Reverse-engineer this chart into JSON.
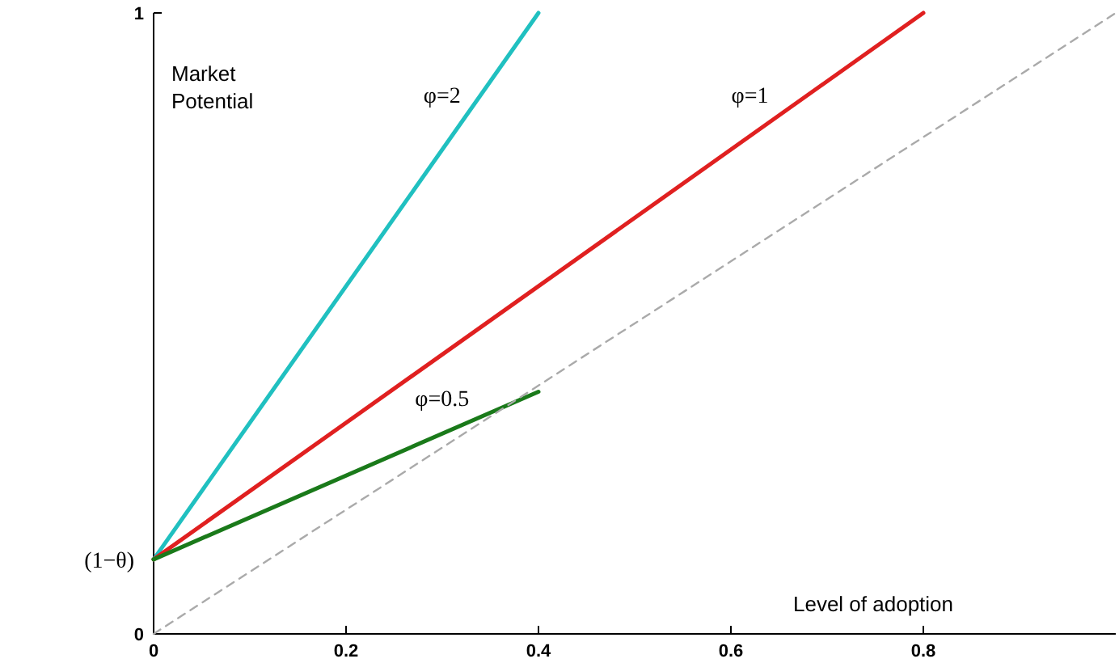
{
  "chart_data": {
    "type": "line",
    "xlabel": "Level of adoption",
    "ylabel": "Market Potential",
    "xlim": [
      0,
      1
    ],
    "ylim": [
      0,
      1
    ],
    "xticks": [
      0,
      0.2,
      0.4,
      0.6,
      0.8
    ],
    "yticks": [
      0,
      1
    ],
    "annotations": [
      {
        "text": "(1−θ)",
        "x": 0,
        "y": 0.12
      }
    ],
    "grid": false,
    "marker": "none",
    "series": [
      {
        "name": "φ=2",
        "color": "#20c0c0",
        "x": [
          0,
          0.4
        ],
        "values": [
          0.12,
          1
        ],
        "line_style": "solid"
      },
      {
        "name": "φ=1",
        "color": "#e02020",
        "x": [
          0,
          0.8
        ],
        "values": [
          0.12,
          1
        ],
        "line_style": "solid"
      },
      {
        "name": "φ=0.5",
        "color": "#1a7a1a",
        "x": [
          0,
          0.4
        ],
        "values": [
          0.12,
          0.39
        ],
        "line_style": "solid"
      },
      {
        "color": "#aaaaaa",
        "x": [
          0,
          1
        ],
        "values": [
          0,
          1
        ],
        "line_style": "dashed"
      }
    ]
  }
}
